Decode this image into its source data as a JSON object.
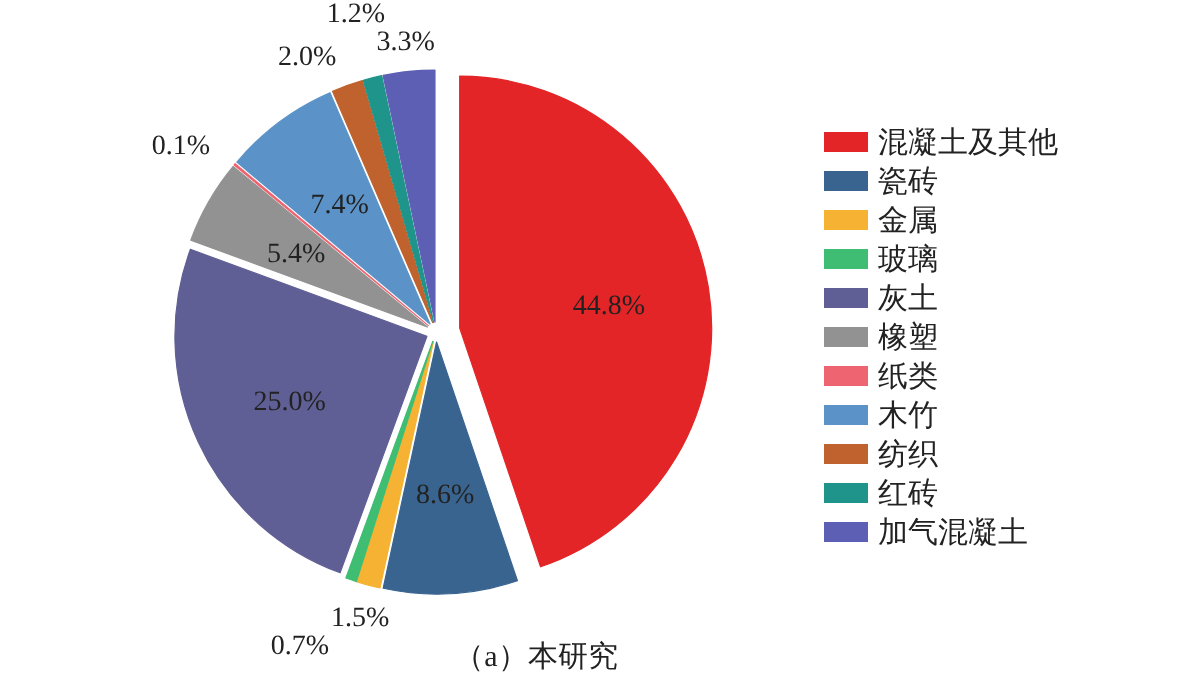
{
  "chart_data": {
    "type": "pie",
    "title": "（a）本研究",
    "categories": [
      "混凝土及其他",
      "瓷砖",
      "金属",
      "玻璃",
      "灰土",
      "橡塑",
      "纸类",
      "木竹",
      "纺织",
      "红砖",
      "加气混凝土"
    ],
    "values": [
      44.8,
      8.6,
      1.5,
      0.7,
      25.0,
      5.4,
      0.1,
      7.4,
      2.0,
      1.2,
      3.3
    ],
    "value_labels": [
      "44.8%",
      "8.6%",
      "1.5%",
      "0.7%",
      "25.0%",
      "5.4%",
      "0.1%",
      "7.4%",
      "2.0%",
      "1.2%",
      "3.3%"
    ],
    "colors": [
      "#e32527",
      "#3a6490",
      "#f5b233",
      "#3fbd72",
      "#5f5f95",
      "#929292",
      "#ee6470",
      "#5b93c8",
      "#c0622d",
      "#1f948a",
      "#5d5fb5"
    ],
    "legend": "right"
  }
}
